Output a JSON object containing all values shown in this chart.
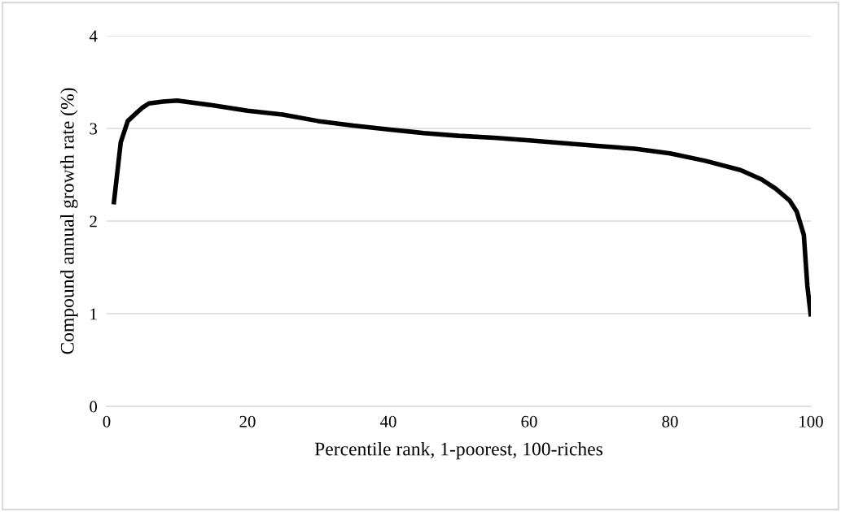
{
  "chart_data": {
    "type": "line",
    "xlabel": "Percentile rank, 1-poorest, 100-riches",
    "ylabel": "Compound annual growth rate (%)",
    "x": [
      1,
      2,
      3,
      4,
      5,
      6,
      8,
      10,
      15,
      20,
      25,
      30,
      35,
      40,
      45,
      50,
      55,
      60,
      65,
      70,
      75,
      80,
      85,
      90,
      93,
      95,
      97,
      98,
      99,
      99.5,
      100
    ],
    "series": [
      {
        "color": "#000000",
        "values": [
          2.18,
          2.85,
          3.08,
          3.15,
          3.22,
          3.27,
          3.29,
          3.3,
          3.25,
          3.19,
          3.15,
          3.08,
          3.03,
          2.99,
          2.95,
          2.92,
          2.9,
          2.87,
          2.84,
          2.81,
          2.78,
          2.73,
          2.65,
          2.55,
          2.45,
          2.35,
          2.22,
          2.1,
          1.85,
          1.3,
          0.97
        ]
      }
    ],
    "xlim": [
      0,
      100
    ],
    "xticks": [
      0,
      20,
      40,
      60,
      80,
      100
    ],
    "ylim": [
      0,
      4
    ],
    "yticks": [
      0,
      1,
      2,
      3,
      4
    ],
    "grid": "y",
    "legend": false,
    "marker": "none",
    "line_style": "solid"
  }
}
